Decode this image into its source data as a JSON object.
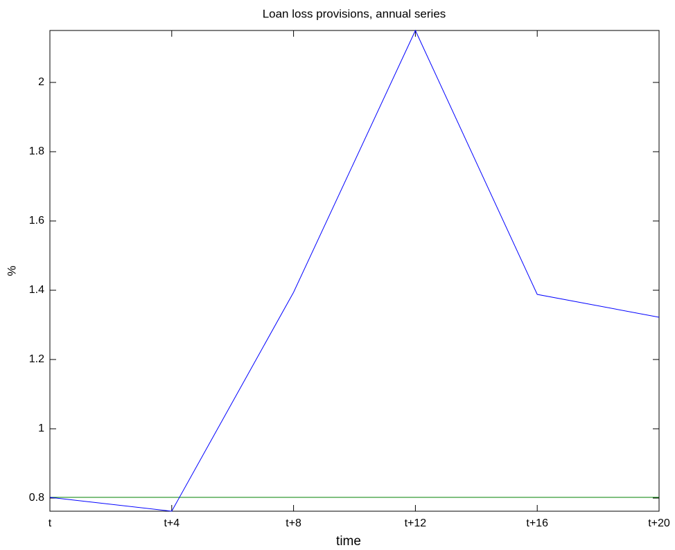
{
  "chart_data": {
    "type": "line",
    "title": "Loan loss provisions, annual series",
    "x_label": "time",
    "y_label": "%",
    "categories": [
      "t",
      "t+4",
      "t+8",
      "t+12",
      "t+16",
      "t+20"
    ],
    "series": [
      {
        "color": "#0000ff",
        "values": [
          0.802,
          0.762,
          1.394,
          2.15,
          1.388,
          1.322
        ]
      },
      {
        "color": "#008000",
        "values": [
          0.802,
          0.802,
          0.802,
          0.802,
          0.802,
          0.802
        ]
      }
    ],
    "ylim": [
      0.762,
      2.15
    ],
    "yticks": [
      0.8,
      1,
      1.2,
      1.4,
      1.6,
      1.8,
      2
    ],
    "grid": false
  }
}
